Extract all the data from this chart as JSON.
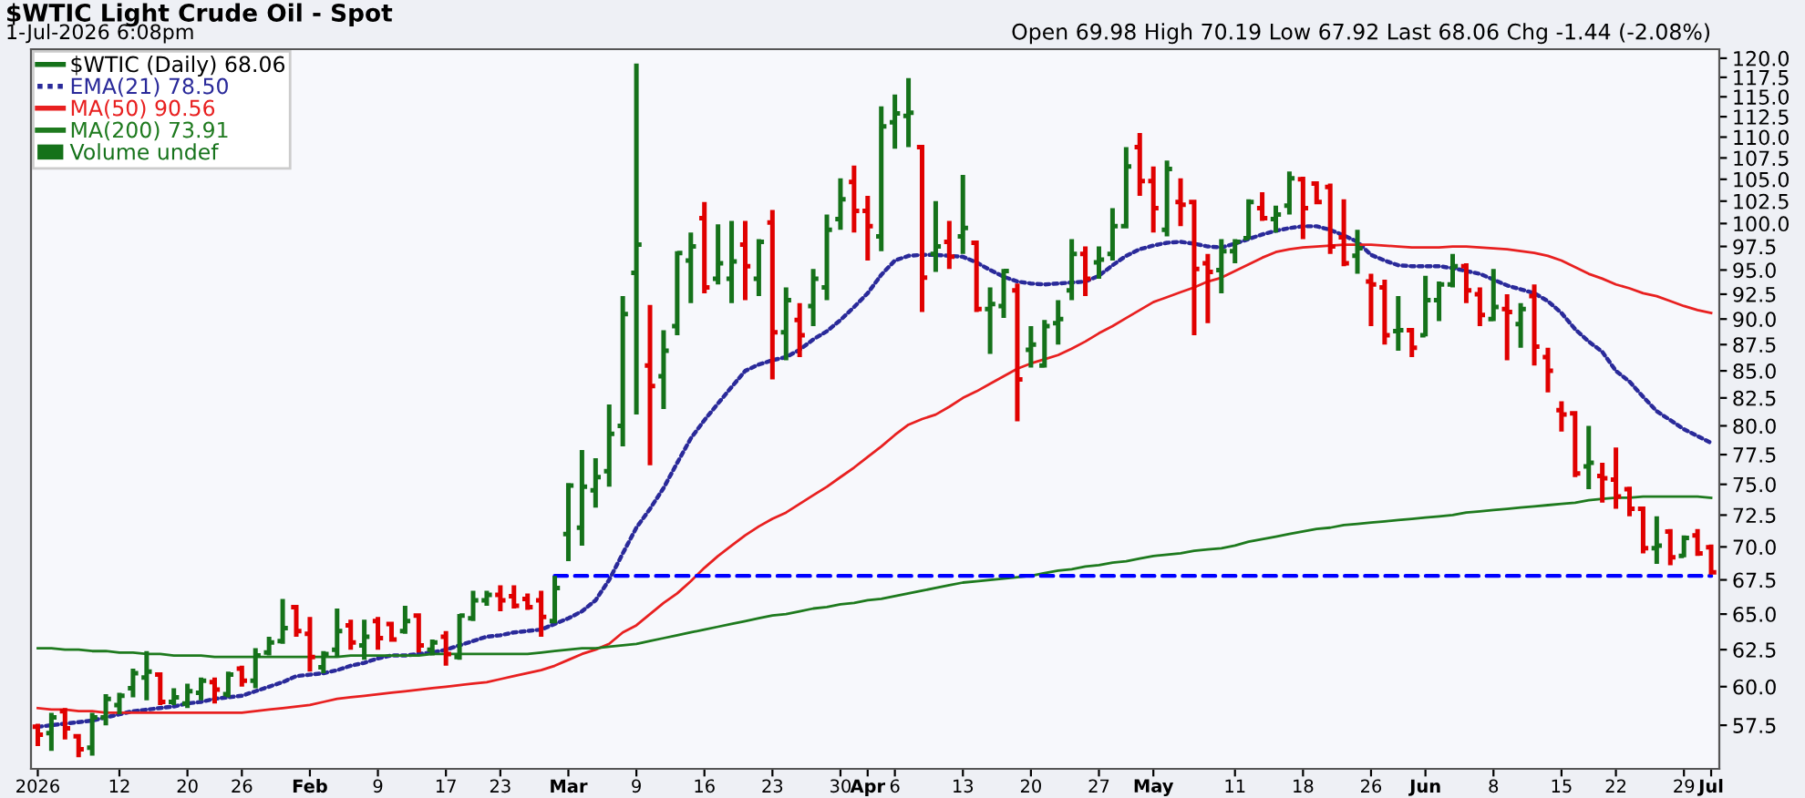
{
  "chart_data": {
    "type": "candlestick",
    "title": "$WTIC Light Crude Oil - Spot",
    "subtitle": "1-Jul-2026 6:08pm",
    "annotations": [
      "Open 69.98 High 70.19 Low 67.92 Last 68.06 Chg -1.44 (-2.08%)",
      "Volume undef"
    ],
    "categories": [
      "2026",
      null,
      null,
      null,
      null,
      null,
      "12",
      null,
      null,
      null,
      null,
      "20",
      null,
      null,
      null,
      "26",
      null,
      null,
      null,
      null,
      "Feb",
      null,
      null,
      null,
      null,
      "9",
      null,
      null,
      null,
      null,
      "17",
      null,
      null,
      null,
      "23",
      null,
      null,
      null,
      null,
      "Mar",
      null,
      null,
      null,
      null,
      "9",
      null,
      null,
      null,
      null,
      "16",
      null,
      null,
      null,
      null,
      "23",
      null,
      null,
      null,
      null,
      "30",
      null,
      "Apr",
      null,
      "6",
      null,
      null,
      null,
      null,
      "13",
      null,
      null,
      null,
      null,
      "20",
      null,
      null,
      null,
      null,
      "27",
      null,
      null,
      null,
      "May",
      null,
      null,
      null,
      null,
      null,
      "11",
      null,
      null,
      null,
      null,
      "18",
      null,
      null,
      null,
      null,
      "26",
      null,
      null,
      null,
      "Jun",
      null,
      null,
      null,
      null,
      "8",
      null,
      null,
      null,
      null,
      "15",
      null,
      null,
      null,
      "22",
      null,
      null,
      null,
      null,
      "29",
      null,
      "Jul"
    ],
    "log": true,
    "ylim": [
      54.8,
      121.2
    ],
    "yticks": [
      {
        "value": 57.5,
        "label": "57.5"
      },
      {
        "value": 60,
        "label": "60.0"
      },
      {
        "value": 62.5,
        "label": "62.5"
      },
      {
        "value": 65,
        "label": "65.0"
      },
      {
        "value": 67.5,
        "label": "67.5"
      },
      {
        "value": 70,
        "label": "70.0"
      },
      {
        "value": 72.5,
        "label": "72.5"
      },
      {
        "value": 75,
        "label": "75.0"
      },
      {
        "value": 77.5,
        "label": "77.5"
      },
      {
        "value": 80,
        "label": "80.0"
      },
      {
        "value": 82.5,
        "label": "82.5"
      },
      {
        "value": 85,
        "label": "85.0"
      },
      {
        "value": 87.5,
        "label": "87.5"
      },
      {
        "value": 90,
        "label": "90.0"
      },
      {
        "value": 92.5,
        "label": "92.5"
      },
      {
        "value": 95,
        "label": "95.0"
      },
      {
        "value": 97.5,
        "label": "97.5"
      },
      {
        "value": 100,
        "label": "100.0"
      },
      {
        "value": 102.5,
        "label": "102.5"
      },
      {
        "value": 105,
        "label": "105.0"
      },
      {
        "value": 107.5,
        "label": "107.5"
      },
      {
        "value": 110,
        "label": "110.0"
      },
      {
        "value": 112.5,
        "label": "112.5"
      },
      {
        "value": 115,
        "label": "115.0"
      },
      {
        "value": 117.5,
        "label": "117.5"
      },
      {
        "value": 120,
        "label": "120.0"
      }
    ],
    "legend": "top left",
    "series": [
      {
        "name": "$WTIC (Daily) 68.06",
        "type": "candlestick",
        "ohlc": [
          [
            57.4,
            57.6,
            56.2,
            56.9
          ],
          [
            57.0,
            58.3,
            55.9,
            58.0
          ],
          [
            58.4,
            58.6,
            56.6,
            57.3
          ],
          [
            56.8,
            56.9,
            55.5,
            56.0
          ],
          [
            56.1,
            58.3,
            55.6,
            58.0
          ],
          [
            58.0,
            59.5,
            57.5,
            59.2
          ],
          [
            58.8,
            59.6,
            58.2,
            59.4
          ],
          [
            59.9,
            61.2,
            59.3,
            60.9
          ],
          [
            60.6,
            62.4,
            59.1,
            61.0
          ],
          [
            60.8,
            60.9,
            58.8,
            59.0
          ],
          [
            59.0,
            59.9,
            58.8,
            59.3
          ],
          [
            58.9,
            60.2,
            58.6,
            59.7
          ],
          [
            59.6,
            60.6,
            59.1,
            60.4
          ],
          [
            60.3,
            60.6,
            58.9,
            59.8
          ],
          [
            59.5,
            61.0,
            59.3,
            60.8
          ],
          [
            61.2,
            61.4,
            60.0,
            60.4
          ],
          [
            60.4,
            62.6,
            59.9,
            62.1
          ],
          [
            62.3,
            63.4,
            62.1,
            63.0
          ],
          [
            63.1,
            66.1,
            62.9,
            64.0
          ],
          [
            65.5,
            65.6,
            63.4,
            63.8
          ],
          [
            63.6,
            64.8,
            61.0,
            62.0
          ],
          [
            61.3,
            62.4,
            60.9,
            62.2
          ],
          [
            62.5,
            65.4,
            62.0,
            63.8
          ],
          [
            64.2,
            64.6,
            62.5,
            63.0
          ],
          [
            62.8,
            64.6,
            61.8,
            63.4
          ],
          [
            64.5,
            64.8,
            62.5,
            63.3
          ],
          [
            64.3,
            64.4,
            63.1,
            63.2
          ],
          [
            63.8,
            65.6,
            63.6,
            64.5
          ],
          [
            64.9,
            65.0,
            62.3,
            62.8
          ],
          [
            62.5,
            63.2,
            62.1,
            63.0
          ],
          [
            63.4,
            63.8,
            61.4,
            62.2
          ],
          [
            62.0,
            65.0,
            61.8,
            64.9
          ],
          [
            64.7,
            66.7,
            64.5,
            66.0
          ],
          [
            66.0,
            66.7,
            65.6,
            66.4
          ],
          [
            66.4,
            67.1,
            65.2,
            66.0
          ],
          [
            66.3,
            67.1,
            65.4,
            65.6
          ],
          [
            66.1,
            66.5,
            65.3,
            65.5
          ],
          [
            66.0,
            66.7,
            63.4,
            64.8
          ],
          [
            64.5,
            67.8,
            64.5,
            66.9
          ],
          [
            71.0,
            75.1,
            68.9,
            74.9
          ],
          [
            71.5,
            77.9,
            70.1,
            74.8
          ],
          [
            74.5,
            77.2,
            73.1,
            75.6
          ],
          [
            76.1,
            81.9,
            74.8,
            79.3
          ],
          [
            80.0,
            92.3,
            78.2,
            90.5
          ],
          [
            94.7,
            119.3,
            81.0,
            97.7
          ],
          [
            85.5,
            91.4,
            76.6,
            83.6
          ],
          [
            84.5,
            88.9,
            81.5,
            86.9
          ],
          [
            89.3,
            97.0,
            88.4,
            96.8
          ],
          [
            96.0,
            99.0,
            91.6,
            97.5
          ],
          [
            100.6,
            102.4,
            92.6,
            93.2
          ],
          [
            94.1,
            99.9,
            93.5,
            95.7
          ],
          [
            94.1,
            100.3,
            91.6,
            95.9
          ],
          [
            97.7,
            100.3,
            91.9,
            95.4
          ],
          [
            94.1,
            98.3,
            92.3,
            98.0
          ],
          [
            100.1,
            101.5,
            84.2,
            88.7
          ],
          [
            88.7,
            93.2,
            86.0,
            91.9
          ],
          [
            89.9,
            91.6,
            86.3,
            88.4
          ],
          [
            91.3,
            95.1,
            89.3,
            94.1
          ],
          [
            93.2,
            101.0,
            91.9,
            99.3
          ],
          [
            100.5,
            105.1,
            99.3,
            102.7
          ],
          [
            104.7,
            106.6,
            99.0,
            101.4
          ],
          [
            101.4,
            103.1,
            96.0,
            99.7
          ],
          [
            98.6,
            113.8,
            97.0,
            111.3
          ],
          [
            111.8,
            115.3,
            108.6,
            112.9
          ],
          [
            112.6,
            117.4,
            108.8,
            113.0
          ],
          [
            108.8,
            109.0,
            90.7,
            94.2
          ],
          [
            96.7,
            102.5,
            94.8,
            97.5
          ],
          [
            98.0,
            100.3,
            95.1,
            96.4
          ],
          [
            98.6,
            105.5,
            96.7,
            99.5
          ],
          [
            97.9,
            97.9,
            90.7,
            91.0
          ],
          [
            91.0,
            93.2,
            86.6,
            91.5
          ],
          [
            91.3,
            95.1,
            90.1,
            94.9
          ],
          [
            92.9,
            93.6,
            80.4,
            84.2
          ],
          [
            87.0,
            89.3,
            85.3,
            87.5
          ],
          [
            85.5,
            89.9,
            85.3,
            89.3
          ],
          [
            89.6,
            91.9,
            87.5,
            90.0
          ],
          [
            92.9,
            98.3,
            91.9,
            96.7
          ],
          [
            96.7,
            97.5,
            92.3,
            94.1
          ],
          [
            95.8,
            97.5,
            94.1,
            96.1
          ],
          [
            96.7,
            101.7,
            96.0,
            99.7
          ],
          [
            99.7,
            108.8,
            99.7,
            106.5
          ],
          [
            108.8,
            110.5,
            103.1,
            104.8
          ],
          [
            104.8,
            106.5,
            99.0,
            101.7
          ],
          [
            99.3,
            107.2,
            98.6,
            106.2
          ],
          [
            102.4,
            105.1,
            99.7,
            102.1
          ],
          [
            102.4,
            102.5,
            88.4,
            95.1
          ],
          [
            95.7,
            96.7,
            89.6,
            94.8
          ],
          [
            95.0,
            98.3,
            92.6,
            97.0
          ],
          [
            97.0,
            98.3,
            95.7,
            98.0
          ],
          [
            98.4,
            102.7,
            98.3,
            102.4
          ],
          [
            101.7,
            103.5,
            100.3,
            100.6
          ],
          [
            100.5,
            102.0,
            99.0,
            101.0
          ],
          [
            102.0,
            105.9,
            101.0,
            105.1
          ],
          [
            105.0,
            105.3,
            98.3,
            101.7
          ],
          [
            104.5,
            104.6,
            102.2,
            102.4
          ],
          [
            104.1,
            104.5,
            96.7,
            97.5
          ],
          [
            98.5,
            102.7,
            95.4,
            95.7
          ],
          [
            96.5,
            99.3,
            94.6,
            97.3
          ],
          [
            93.8,
            94.6,
            89.3,
            93.5
          ],
          [
            93.2,
            94.0,
            87.5,
            88.4
          ],
          [
            88.8,
            92.3,
            86.9,
            88.9
          ],
          [
            88.9,
            89.0,
            86.3,
            87.2
          ],
          [
            88.4,
            94.4,
            88.3,
            91.9
          ],
          [
            91.9,
            93.8,
            89.8,
            93.5
          ],
          [
            93.5,
            96.7,
            93.2,
            95.4
          ],
          [
            95.4,
            95.7,
            91.6,
            92.9
          ],
          [
            92.5,
            93.2,
            89.3,
            90.4
          ],
          [
            90.0,
            95.1,
            89.8,
            91.2
          ],
          [
            91.0,
            92.5,
            86.0,
            90.7
          ],
          [
            89.5,
            91.6,
            87.2,
            91.0
          ],
          [
            92.3,
            93.5,
            85.5,
            87.3
          ],
          [
            86.3,
            87.2,
            83.0,
            85.0
          ],
          [
            81.4,
            82.2,
            79.5,
            81.0
          ],
          [
            81.1,
            81.3,
            75.6,
            75.9
          ],
          [
            76.5,
            80.0,
            74.6,
            76.8
          ],
          [
            75.7,
            76.8,
            73.5,
            75.5
          ],
          [
            75.4,
            78.1,
            73.0,
            74.0
          ],
          [
            74.6,
            74.8,
            72.4,
            73.0
          ],
          [
            73.0,
            73.1,
            69.5,
            69.9
          ],
          [
            69.9,
            72.4,
            68.7,
            70.1
          ],
          [
            71.2,
            71.4,
            68.6,
            69.2
          ],
          [
            69.3,
            70.9,
            69.2,
            70.7
          ],
          [
            70.9,
            71.4,
            69.3,
            69.5
          ],
          [
            69.98,
            70.19,
            67.92,
            68.06
          ]
        ],
        "colors": [
          "#e00000",
          "#15721a",
          "#e00000",
          "#e00000",
          "#15721a",
          "#15721a",
          "#15721a",
          "#15721a",
          "#15721a",
          "#e00000",
          "#15721a",
          "#15721a",
          "#15721a",
          "#e00000",
          "#15721a",
          "#e00000",
          "#15721a",
          "#15721a",
          "#15721a",
          "#e00000",
          "#e00000",
          "#15721a",
          "#15721a",
          "#e00000",
          "#15721a",
          "#e00000",
          "#e00000",
          "#15721a",
          "#e00000",
          "#15721a",
          "#e00000",
          "#15721a",
          "#15721a",
          "#15721a",
          "#e00000",
          "#e00000",
          "#e00000",
          "#e00000",
          "#15721a",
          "#15721a",
          "#15721a",
          "#15721a",
          "#15721a",
          "#15721a",
          "#15721a",
          "#e00000",
          "#15721a",
          "#15721a",
          "#15721a",
          "#e00000",
          "#15721a",
          "#15721a",
          "#e00000",
          "#15721a",
          "#e00000",
          "#15721a",
          "#e00000",
          "#15721a",
          "#15721a",
          "#15721a",
          "#e00000",
          "#e00000",
          "#15721a",
          "#15721a",
          "#15721a",
          "#e00000",
          "#15721a",
          "#e00000",
          "#15721a",
          "#e00000",
          "#15721a",
          "#15721a",
          "#e00000",
          "#15721a",
          "#15721a",
          "#15721a",
          "#15721a",
          "#e00000",
          "#15721a",
          "#15721a",
          "#15721a",
          "#e00000",
          "#e00000",
          "#15721a",
          "#e00000",
          "#e00000",
          "#e00000",
          "#15721a",
          "#15721a",
          "#15721a",
          "#e00000",
          "#15721a",
          "#15721a",
          "#e00000",
          "#e00000",
          "#e00000",
          "#e00000",
          "#15721a",
          "#e00000",
          "#e00000",
          "#15721a",
          "#e00000",
          "#15721a",
          "#15721a",
          "#15721a",
          "#e00000",
          "#e00000",
          "#15721a",
          "#e00000",
          "#15721a",
          "#e00000",
          "#e00000",
          "#e00000",
          "#e00000",
          "#15721a",
          "#e00000",
          "#e00000",
          "#e00000",
          "#e00000",
          "#15721a",
          "#e00000",
          "#15721a",
          "#e00000",
          "#e00000"
        ]
      },
      {
        "name": "EMA(21) 78.50",
        "type": "line",
        "color": "#2a2a9a",
        "line_style": "dotted",
        "values": [
          57.4,
          57.5,
          57.6,
          57.7,
          57.8,
          58.0,
          58.2,
          58.4,
          58.5,
          58.6,
          58.7,
          58.9,
          59.0,
          59.2,
          59.3,
          59.4,
          59.7,
          60.0,
          60.3,
          60.7,
          60.8,
          60.9,
          61.1,
          61.4,
          61.6,
          61.9,
          62.1,
          62.1,
          62.2,
          62.3,
          62.5,
          62.8,
          63.1,
          63.4,
          63.5,
          63.7,
          63.8,
          63.9,
          64.3,
          64.7,
          65.2,
          66.0,
          67.5,
          69.5,
          71.5,
          73.0,
          74.7,
          76.8,
          78.9,
          80.5,
          82.0,
          83.5,
          85.0,
          85.6,
          86.0,
          86.3,
          87.0,
          88.0,
          88.8,
          89.9,
          91.2,
          92.6,
          94.5,
          96.0,
          96.5,
          96.6,
          96.6,
          96.5,
          96.4,
          95.8,
          95.0,
          94.3,
          93.8,
          93.6,
          93.5,
          93.6,
          93.7,
          93.8,
          94.4,
          95.5,
          96.5,
          97.2,
          97.6,
          97.9,
          98.0,
          97.8,
          97.5,
          97.4,
          97.8,
          98.3,
          98.8,
          99.2,
          99.5,
          99.7,
          99.7,
          99.3,
          98.7,
          98.0,
          96.6,
          96.0,
          95.5,
          95.4,
          95.4,
          95.4,
          95.2,
          94.9,
          94.6,
          94.0,
          93.4,
          93.0,
          92.6,
          91.8,
          90.6,
          89.0,
          87.8,
          86.8,
          85.0,
          84.0,
          82.6,
          81.3,
          80.5,
          79.7,
          79.1,
          78.5
        ]
      },
      {
        "name": "MA(50) 90.56",
        "type": "line",
        "color": "#e82020",
        "line_style": "solid",
        "values": [
          58.6,
          58.5,
          58.5,
          58.4,
          58.4,
          58.3,
          58.3,
          58.3,
          58.3,
          58.3,
          58.3,
          58.3,
          58.3,
          58.3,
          58.3,
          58.3,
          58.4,
          58.5,
          58.6,
          58.7,
          58.8,
          59.0,
          59.2,
          59.3,
          59.4,
          59.5,
          59.6,
          59.7,
          59.8,
          59.9,
          60.0,
          60.1,
          60.2,
          60.3,
          60.5,
          60.7,
          60.9,
          61.1,
          61.4,
          61.8,
          62.2,
          62.5,
          62.9,
          63.7,
          64.2,
          65.0,
          65.8,
          66.5,
          67.4,
          68.4,
          69.3,
          70.1,
          70.9,
          71.6,
          72.2,
          72.7,
          73.4,
          74.1,
          74.8,
          75.6,
          76.4,
          77.3,
          78.2,
          79.2,
          80.1,
          80.6,
          81.0,
          81.7,
          82.5,
          83.1,
          83.8,
          84.5,
          85.2,
          85.7,
          86.1,
          86.5,
          87.1,
          87.8,
          88.6,
          89.3,
          90.1,
          90.9,
          91.7,
          92.2,
          92.7,
          93.2,
          93.8,
          94.2,
          94.9,
          95.6,
          96.3,
          96.9,
          97.2,
          97.4,
          97.5,
          97.6,
          97.7,
          97.7,
          97.7,
          97.6,
          97.5,
          97.4,
          97.4,
          97.4,
          97.5,
          97.5,
          97.4,
          97.3,
          97.2,
          97.0,
          96.8,
          96.5,
          96.0,
          95.3,
          94.6,
          94.1,
          93.5,
          93.1,
          92.6,
          92.3,
          91.8,
          91.3,
          90.9,
          90.6
        ]
      },
      {
        "name": "MA(200) 73.91",
        "type": "line",
        "color": "#1e7a1e",
        "line_style": "solid",
        "values": [
          62.6,
          62.6,
          62.5,
          62.5,
          62.4,
          62.4,
          62.3,
          62.3,
          62.2,
          62.2,
          62.1,
          62.1,
          62.1,
          62.0,
          62.0,
          62.0,
          62.0,
          62.0,
          62.0,
          62.0,
          62.0,
          62.0,
          62.0,
          62.1,
          62.1,
          62.1,
          62.1,
          62.1,
          62.1,
          62.2,
          62.2,
          62.2,
          62.2,
          62.2,
          62.2,
          62.2,
          62.2,
          62.3,
          62.4,
          62.5,
          62.6,
          62.6,
          62.7,
          62.8,
          62.9,
          63.1,
          63.3,
          63.5,
          63.7,
          63.9,
          64.1,
          64.3,
          64.5,
          64.7,
          64.9,
          65.0,
          65.2,
          65.4,
          65.5,
          65.7,
          65.8,
          66.0,
          66.1,
          66.3,
          66.5,
          66.7,
          66.9,
          67.1,
          67.3,
          67.4,
          67.5,
          67.6,
          67.7,
          67.8,
          68.0,
          68.2,
          68.3,
          68.5,
          68.6,
          68.8,
          68.9,
          69.1,
          69.3,
          69.4,
          69.5,
          69.7,
          69.8,
          69.9,
          70.1,
          70.4,
          70.6,
          70.8,
          71.0,
          71.2,
          71.4,
          71.5,
          71.7,
          71.8,
          71.9,
          72.0,
          72.1,
          72.2,
          72.3,
          72.4,
          72.5,
          72.7,
          72.8,
          72.9,
          73.0,
          73.1,
          73.2,
          73.3,
          73.4,
          73.5,
          73.7,
          73.8,
          73.9,
          73.9,
          74.0,
          74.0,
          74.0,
          74.0,
          74.0,
          73.9
        ]
      },
      {
        "type": "line",
        "color": "#0000ff",
        "line_style": "dashed",
        "values": [
          null,
          null,
          null,
          null,
          null,
          null,
          null,
          null,
          null,
          null,
          null,
          null,
          null,
          null,
          null,
          null,
          null,
          null,
          null,
          null,
          null,
          null,
          null,
          null,
          null,
          null,
          null,
          null,
          null,
          null,
          null,
          null,
          null,
          null,
          null,
          null,
          null,
          null,
          67.8,
          67.8,
          67.8,
          67.8,
          67.8,
          67.8,
          67.8,
          67.8,
          67.8,
          67.8,
          67.8,
          67.8,
          67.8,
          67.8,
          67.8,
          67.8,
          67.8,
          67.8,
          67.8,
          67.8,
          67.8,
          67.8,
          67.8,
          67.8,
          67.8,
          67.8,
          67.8,
          67.8,
          67.8,
          67.8,
          67.8,
          67.8,
          67.8,
          67.8,
          67.8,
          67.8,
          67.8,
          67.8,
          67.8,
          67.8,
          67.8,
          67.8,
          67.8,
          67.8,
          67.8,
          67.8,
          67.8,
          67.8,
          67.8,
          67.8,
          67.8,
          67.8,
          67.8,
          67.8,
          67.8,
          67.8,
          67.8,
          67.8,
          67.8,
          67.8,
          67.8,
          67.8,
          67.8,
          67.8,
          67.8,
          67.8,
          67.8,
          67.8,
          67.8,
          67.8,
          67.8,
          67.8,
          67.8,
          67.8,
          67.8,
          67.8,
          67.8,
          67.8,
          67.8,
          67.8,
          67.8,
          67.8,
          67.8,
          67.8,
          67.8,
          67.8
        ]
      }
    ]
  }
}
